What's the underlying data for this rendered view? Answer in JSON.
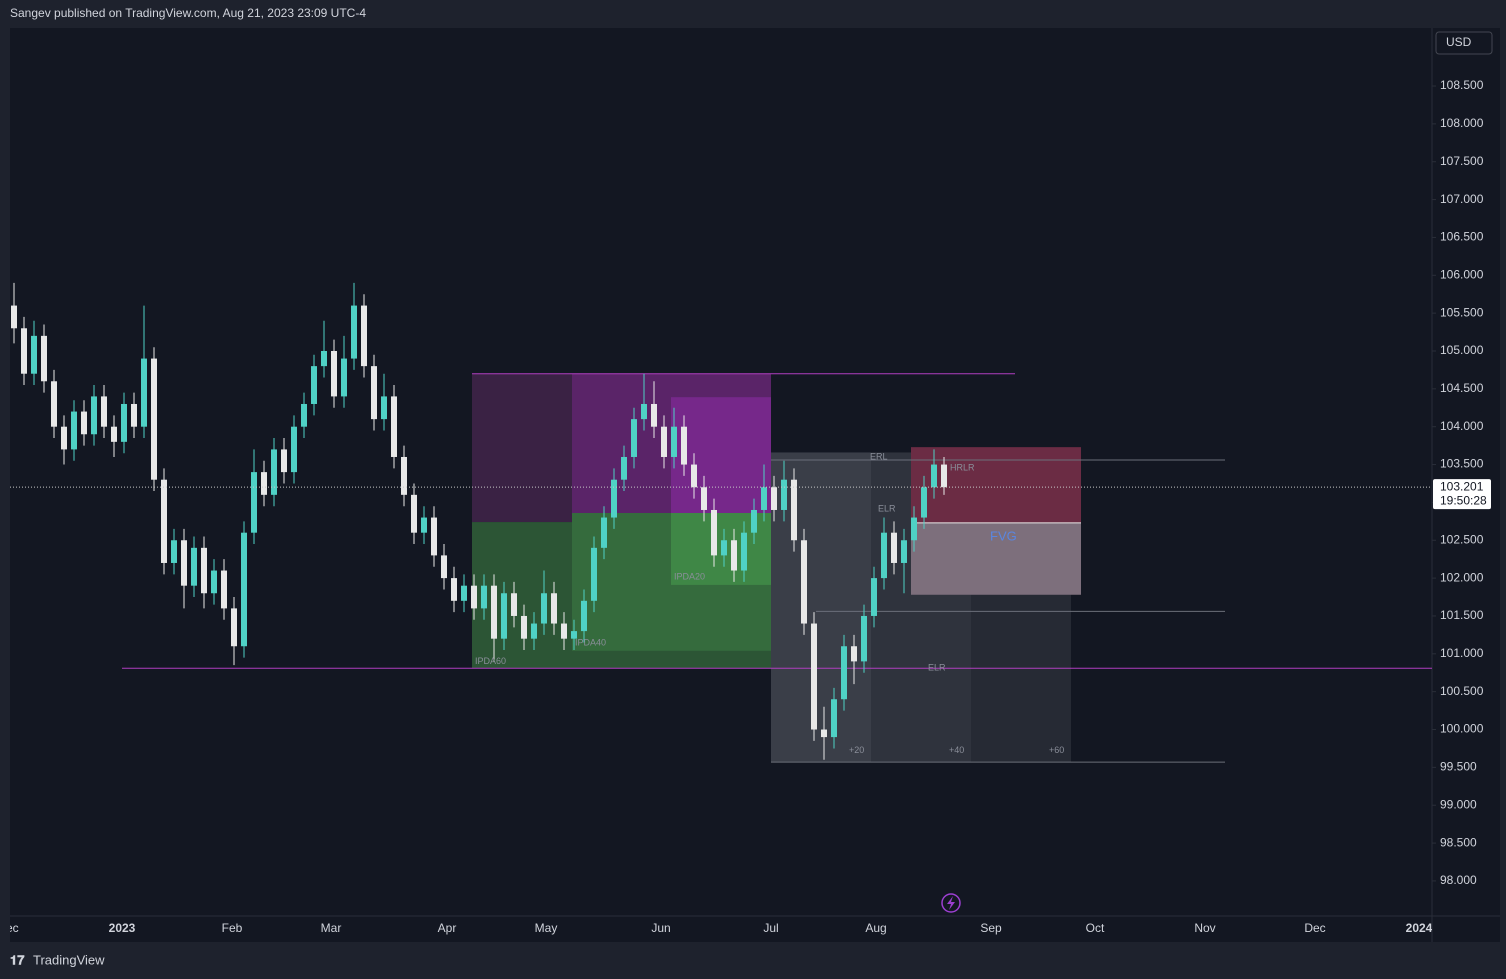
{
  "header": {
    "publisher": "Sangev published on TradingView.com, Aug 21, 2023 23:09 UTC-4",
    "currency": "USD",
    "countdown": "19:50:28"
  },
  "footer": {
    "brand": "TradingView"
  },
  "chart_data": {
    "type": "candlestick",
    "up_color": "#4fd1c5",
    "down_color": "#e8e8e8",
    "open": [
      105.6,
      105.3,
      104.7,
      105.2,
      104.6,
      104.0,
      103.7,
      104.2,
      103.9,
      104.4,
      104.0,
      103.8,
      104.3,
      104.0,
      104.9,
      103.3,
      102.2,
      102.5,
      101.9,
      102.4,
      101.8,
      102.1,
      101.6,
      101.1,
      102.6,
      103.4,
      103.1,
      103.7,
      103.4,
      104.0,
      104.3,
      104.8,
      105.0,
      104.4,
      104.9,
      105.6,
      104.8,
      104.1,
      104.4,
      103.6,
      103.1,
      102.6,
      102.8,
      102.3,
      102.0,
      101.7,
      101.9,
      101.6,
      101.9,
      101.2,
      101.8,
      101.5,
      101.2,
      101.4,
      101.8,
      101.4,
      101.2,
      101.3,
      101.7,
      102.4,
      102.8,
      103.3,
      103.6,
      104.1,
      104.3,
      104.0,
      103.6,
      104.0,
      103.5,
      103.2,
      102.9,
      102.3,
      102.5,
      102.1,
      102.6,
      102.9,
      103.2,
      102.9,
      103.3,
      102.5,
      101.4,
      100.0,
      99.9,
      100.4,
      101.1,
      100.9,
      101.5,
      102.0,
      102.6,
      102.2,
      102.5,
      102.8,
      103.2,
      103.5
    ],
    "high": [
      105.9,
      105.45,
      105.4,
      105.35,
      104.75,
      104.15,
      104.35,
      104.35,
      104.55,
      104.55,
      104.15,
      104.45,
      104.45,
      105.6,
      105.05,
      103.45,
      102.65,
      102.65,
      102.55,
      102.55,
      102.25,
      102.25,
      101.75,
      102.75,
      103.7,
      103.55,
      103.85,
      103.85,
      104.15,
      104.45,
      104.95,
      105.4,
      105.15,
      105.2,
      105.9,
      105.75,
      104.95,
      104.7,
      104.55,
      103.75,
      103.25,
      102.95,
      102.95,
      102.45,
      102.15,
      102.05,
      102.05,
      102.05,
      102.05,
      101.95,
      101.95,
      101.65,
      101.55,
      102.1,
      101.95,
      101.55,
      101.45,
      101.85,
      102.55,
      102.95,
      103.45,
      103.75,
      104.25,
      104.7,
      104.6,
      104.15,
      104.25,
      104.15,
      103.65,
      103.35,
      103.05,
      102.65,
      102.65,
      102.75,
      103.05,
      103.5,
      103.35,
      103.55,
      103.45,
      102.65,
      101.55,
      100.3,
      100.55,
      101.25,
      101.25,
      101.65,
      102.15,
      102.8,
      102.75,
      102.65,
      102.95,
      103.35,
      103.7,
      103.6
    ],
    "low": [
      105.1,
      104.55,
      104.55,
      104.45,
      103.85,
      103.5,
      103.55,
      103.75,
      103.75,
      103.85,
      103.6,
      103.65,
      103.85,
      103.85,
      103.15,
      102.05,
      102.05,
      101.6,
      101.75,
      101.6,
      101.65,
      101.45,
      100.85,
      100.95,
      102.45,
      102.95,
      102.95,
      103.25,
      103.25,
      103.85,
      104.15,
      104.65,
      104.25,
      104.25,
      104.75,
      104.65,
      103.95,
      103.95,
      103.45,
      102.95,
      102.45,
      102.45,
      102.15,
      101.85,
      101.55,
      101.55,
      101.45,
      101.45,
      100.9,
      101.05,
      101.35,
      101.05,
      101.05,
      101.25,
      101.25,
      101.05,
      101.05,
      101.15,
      101.55,
      102.25,
      102.65,
      103.15,
      103.45,
      103.95,
      103.85,
      103.45,
      103.45,
      103.35,
      103.05,
      102.75,
      102.15,
      102.15,
      101.95,
      101.95,
      102.45,
      102.75,
      102.75,
      102.75,
      102.35,
      101.25,
      99.85,
      99.6,
      99.75,
      100.25,
      100.6,
      100.75,
      101.35,
      101.85,
      102.05,
      101.8,
      102.35,
      102.65,
      103.05,
      103.1
    ],
    "close": [
      105.3,
      104.7,
      105.2,
      104.6,
      104.0,
      103.7,
      104.2,
      103.9,
      104.4,
      104.0,
      103.8,
      104.3,
      104.0,
      104.9,
      103.3,
      102.2,
      102.5,
      101.9,
      102.4,
      101.8,
      102.1,
      101.6,
      101.1,
      102.6,
      103.4,
      103.1,
      103.7,
      103.4,
      104.0,
      104.3,
      104.8,
      105.0,
      104.4,
      104.9,
      105.6,
      104.8,
      104.1,
      104.4,
      103.6,
      103.1,
      102.6,
      102.8,
      102.3,
      102.0,
      101.7,
      101.9,
      101.6,
      101.9,
      101.2,
      101.8,
      101.5,
      101.2,
      101.4,
      101.8,
      101.4,
      101.2,
      101.3,
      101.7,
      102.4,
      102.8,
      103.3,
      103.6,
      104.1,
      104.3,
      104.0,
      103.6,
      104.0,
      103.5,
      103.2,
      102.9,
      102.3,
      102.5,
      102.1,
      102.6,
      102.9,
      103.2,
      102.9,
      103.3,
      102.5,
      101.4,
      100.0,
      99.9,
      100.4,
      101.1,
      100.9,
      101.5,
      102.0,
      102.6,
      102.2,
      102.5,
      102.8,
      103.2,
      103.5,
      103.201
    ],
    "xlim": [
      -0.4,
      141.8
    ],
    "xticks": [
      {
        "value": -0.6,
        "label": "Dec"
      },
      {
        "value": 10.8,
        "label": "2023"
      },
      {
        "value": 21.8,
        "label": "Feb"
      },
      {
        "value": 31.7,
        "label": "Mar"
      },
      {
        "value": 43.3,
        "label": "Apr"
      },
      {
        "value": 53.2,
        "label": "May"
      },
      {
        "value": 64.7,
        "label": "Jun"
      },
      {
        "value": 75.7,
        "label": "Jul"
      },
      {
        "value": 86.2,
        "label": "Aug"
      },
      {
        "value": 97.7,
        "label": "Sep"
      },
      {
        "value": 108.1,
        "label": "Oct"
      },
      {
        "value": 119.1,
        "label": "Nov"
      },
      {
        "value": 130.1,
        "label": "Dec"
      },
      {
        "value": 140.5,
        "label": "2024"
      }
    ],
    "ylim": [
      97.55,
      109.24
    ],
    "yticks": [
      {
        "value": 98,
        "label": "98.000"
      },
      {
        "value": 98.5,
        "label": "98.500"
      },
      {
        "value": 99,
        "label": "99.000"
      },
      {
        "value": 99.5,
        "label": "99.500"
      },
      {
        "value": 100,
        "label": "100.000"
      },
      {
        "value": 100.5,
        "label": "100.500"
      },
      {
        "value": 101,
        "label": "101.000"
      },
      {
        "value": 101.5,
        "label": "101.500"
      },
      {
        "value": 102,
        "label": "102.000"
      },
      {
        "value": 102.5,
        "label": "102.500"
      },
      {
        "value": 103,
        "label": "103.000"
      },
      {
        "value": 103.5,
        "label": "103.500"
      },
      {
        "value": 104,
        "label": "104.000"
      },
      {
        "value": 104.5,
        "label": "104.500"
      },
      {
        "value": 105,
        "label": "105.000"
      },
      {
        "value": 105.5,
        "label": "105.500"
      },
      {
        "value": 106,
        "label": "106.000"
      },
      {
        "value": 106.5,
        "label": "106.500"
      },
      {
        "value": 107,
        "label": "107.000"
      },
      {
        "value": 107.5,
        "label": "107.500"
      },
      {
        "value": 108,
        "label": "108.000"
      },
      {
        "value": 108.5,
        "label": "108.500"
      }
    ],
    "zones": [
      {
        "x": [
          45.8,
          55.8
        ],
        "y": [
          102.74,
          104.7
        ],
        "color": "#3a2244"
      },
      {
        "x": [
          55.8,
          75.7
        ],
        "y": [
          102.86,
          104.7
        ],
        "color": "#5a2468"
      },
      {
        "x": [
          65.7,
          75.7
        ],
        "y": [
          102.86,
          104.39
        ],
        "color": "#76288a"
      },
      {
        "x": [
          45.8,
          75.7
        ],
        "y": [
          100.81,
          102.74
        ],
        "color": "#2c5535"
      },
      {
        "x": [
          55.8,
          75.7
        ],
        "y": [
          101.04,
          102.86
        ],
        "color": "#356b3d"
      },
      {
        "x": [
          65.7,
          75.7
        ],
        "y": [
          101.91,
          102.86
        ],
        "color": "#3f8746"
      },
      {
        "x": [
          75.7,
          85.7
        ],
        "y": [
          99.57,
          103.66
        ],
        "color": "#3a3e48"
      },
      {
        "x": [
          85.7,
          95.7
        ],
        "y": [
          99.57,
          103.66
        ],
        "color": "#2f333d"
      },
      {
        "x": [
          95.7,
          105.7
        ],
        "y": [
          99.57,
          103.66
        ],
        "color": "#262a34"
      },
      {
        "x": [
          89.7,
          106.7
        ],
        "y": [
          102.73,
          103.73
        ],
        "color": "#6b2c44"
      },
      {
        "x": [
          89.7,
          106.7
        ],
        "y": [
          101.78,
          102.73
        ],
        "color": "#7d6f7c"
      }
    ],
    "lines": [
      {
        "x": [
          45.8,
          100.1
        ],
        "y": 104.7,
        "color": "#b03fc0"
      },
      {
        "x": [
          10.8,
          141.8
        ],
        "y": 100.81,
        "color": "#b03fc0"
      },
      {
        "x": [
          75.7,
          121.1
        ],
        "y": 103.56,
        "color": "#6b6f7a"
      },
      {
        "x": [
          80.2,
          121.1
        ],
        "y": 101.56,
        "color": "#6b6f7a"
      },
      {
        "x": [
          75.7,
          121.1
        ],
        "y": 99.57,
        "color": "#6b6f7a"
      },
      {
        "x": [
          89.7,
          106.7
        ],
        "y": 102.73,
        "color": "#e8e8e8"
      }
    ],
    "annotations": [
      {
        "text": "IPDA60",
        "x": 46.1,
        "y": 100.9,
        "color": "#8a8e99"
      },
      {
        "text": "IPDA40",
        "x": 56.1,
        "y": 101.14,
        "color": "#8a8e99"
      },
      {
        "text": "IPDA20",
        "x": 66.0,
        "y": 102.01,
        "color": "#8a8e99"
      },
      {
        "text": "ERL",
        "x": 85.6,
        "y": 103.6,
        "color": "#8a8e99"
      },
      {
        "text": "ELR",
        "x": 86.4,
        "y": 102.91,
        "color": "#8a8e99"
      },
      {
        "text": "HRLR",
        "x": 93.6,
        "y": 103.45,
        "color": "#8a8e99"
      },
      {
        "text": "ELR",
        "x": 91.4,
        "y": 100.81,
        "color": "#8a8e99"
      },
      {
        "text": "FVG",
        "x": 97.6,
        "y": 102.54,
        "color": "#5a86e0"
      },
      {
        "text": "+20",
        "x": 83.5,
        "y": 99.72,
        "color": "#8a8e99"
      },
      {
        "text": "+40",
        "x": 93.5,
        "y": 99.72,
        "color": "#8a8e99"
      },
      {
        "text": "+60",
        "x": 103.5,
        "y": 99.72,
        "color": "#8a8e99"
      }
    ]
  }
}
